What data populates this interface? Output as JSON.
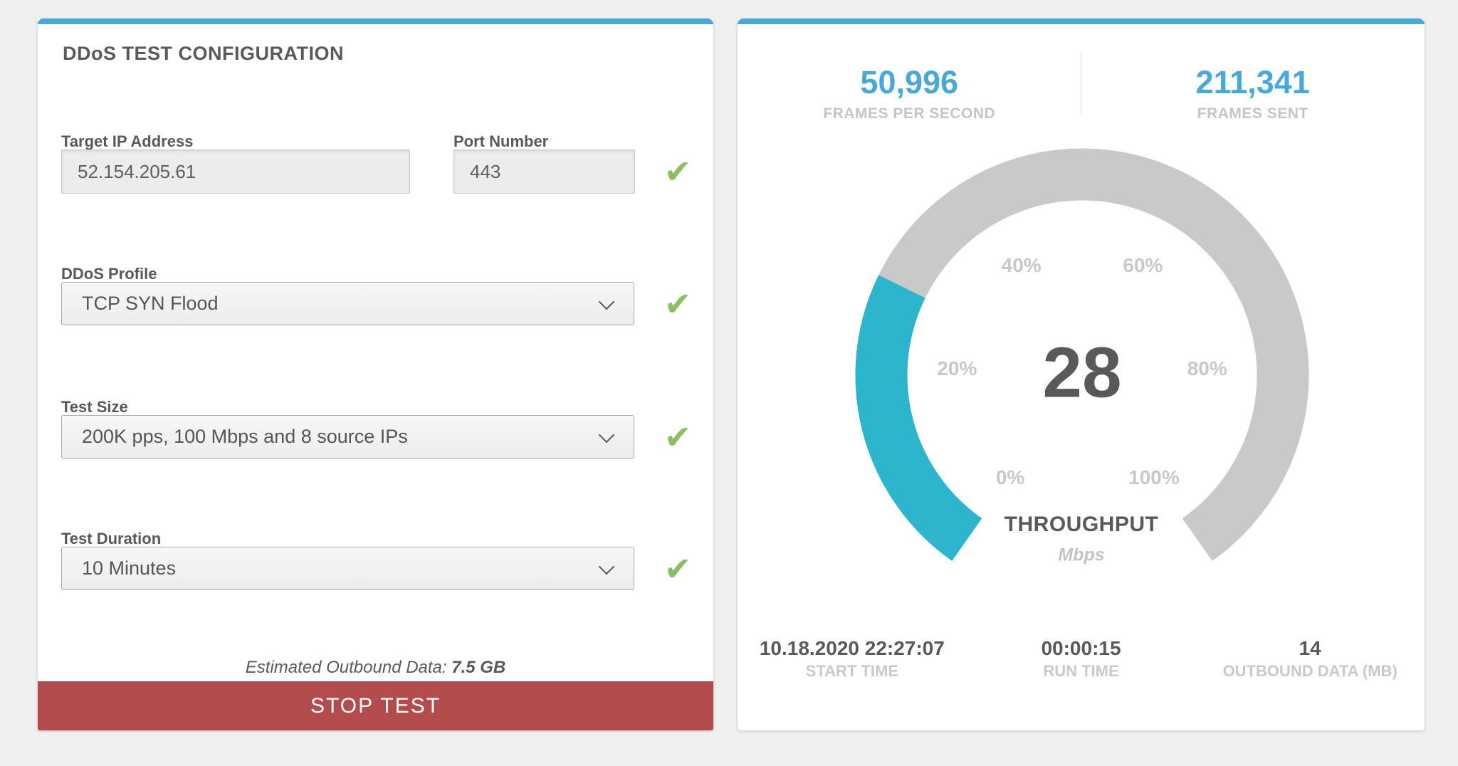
{
  "colors": {
    "accent_blue": "#49a8d8",
    "gauge_teal": "#2eb5ce",
    "gauge_track": "#c9c9c9",
    "button_red": "#b34c4d",
    "check_green": "#8ebe63",
    "text_dark": "#58595b",
    "text_light": "#c5c5c5",
    "page_background": "#f0f0f1"
  },
  "config_panel": {
    "title": "DDoS TEST CONFIGURATION",
    "target_ip": {
      "label": "Target IP Address",
      "value": "52.154.205.61"
    },
    "port": {
      "label": "Port Number",
      "value": "443"
    },
    "profile": {
      "label": "DDoS Profile",
      "value": "TCP SYN Flood"
    },
    "test_size": {
      "label": "Test Size",
      "value": "200K pps, 100 Mbps and 8 source IPs"
    },
    "duration": {
      "label": "Test Duration",
      "value": "10 Minutes"
    },
    "estimated": {
      "label": "Estimated Outbound Data: ",
      "value": "7.5 GB"
    },
    "stop_button_label": "STOP TEST"
  },
  "stats_panel": {
    "top_stats": [
      {
        "value": "50,996",
        "label": "FRAMES PER SECOND"
      },
      {
        "value": "211,341",
        "label": "FRAMES SENT"
      }
    ],
    "gauge": {
      "value": "28",
      "title": "THROUGHPUT",
      "unit": "Mbps"
    },
    "bottom_stats": [
      {
        "value": "10.18.2020 22:27:07",
        "label": "START TIME"
      },
      {
        "value": "00:00:15",
        "label": "RUN TIME"
      },
      {
        "value": "14",
        "label": "OUTBOUND DATA (MB)"
      }
    ]
  },
  "chart_data": {
    "type": "gauge",
    "title": "THROUGHPUT",
    "unit": "Mbps",
    "value": 28,
    "min": 0,
    "max": 100,
    "tick_labels": [
      "0%",
      "20%",
      "40%",
      "60%",
      "80%",
      "100%"
    ],
    "start_angle_deg": 215,
    "sweep_deg": 290,
    "fill_color": "#2eb5ce",
    "track_color": "#c9c9c9"
  }
}
